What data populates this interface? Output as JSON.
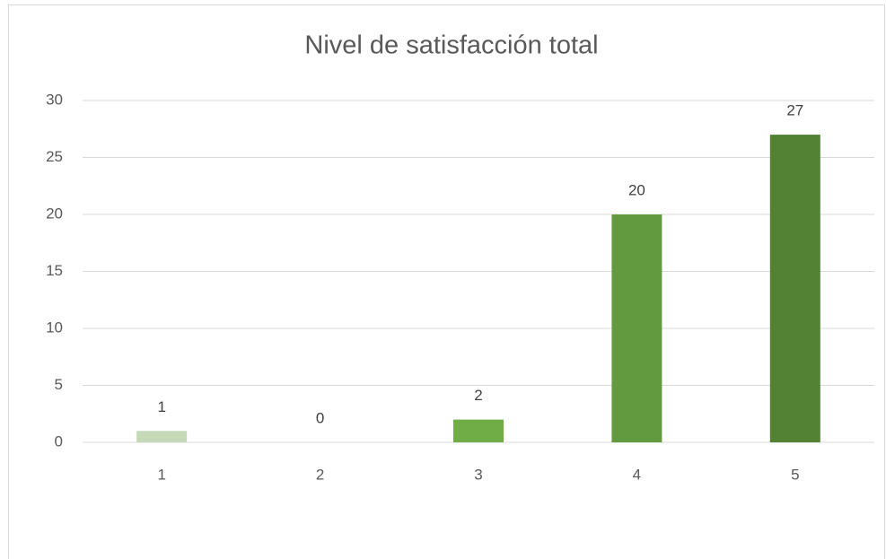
{
  "chart_data": {
    "type": "bar",
    "title": "Nivel de satisfacción total",
    "categories": [
      "1",
      "2",
      "3",
      "4",
      "5"
    ],
    "values": [
      1,
      0,
      2,
      20,
      27
    ],
    "colors": [
      "#c5d9b8",
      "#a9d08e",
      "#70ad47",
      "#629b3f",
      "#548235"
    ],
    "ylim": [
      0,
      30
    ],
    "yticks": [
      0,
      5,
      10,
      15,
      20,
      25,
      30
    ],
    "grid": true
  }
}
